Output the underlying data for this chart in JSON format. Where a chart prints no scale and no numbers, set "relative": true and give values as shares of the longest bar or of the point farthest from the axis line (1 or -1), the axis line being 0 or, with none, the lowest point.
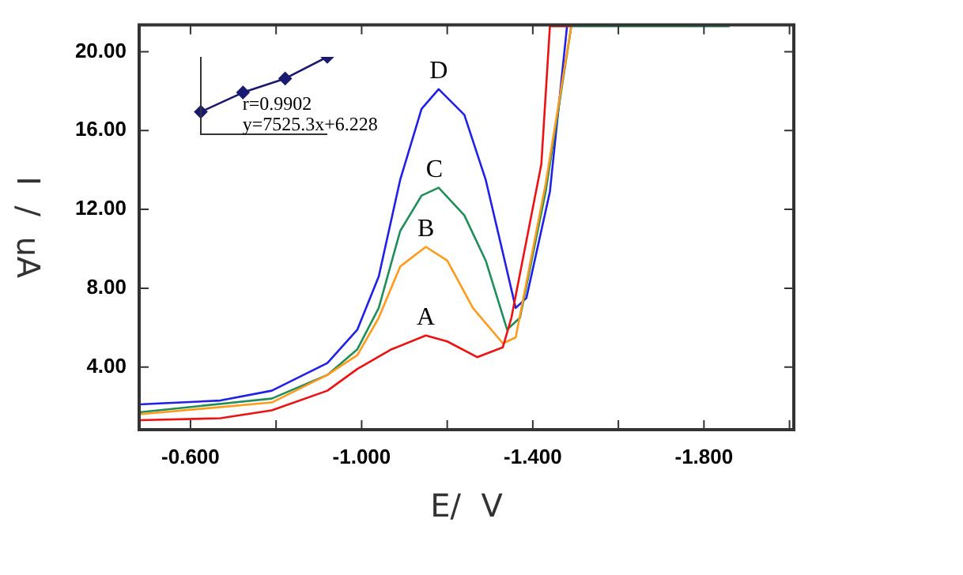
{
  "chart_data": [
    {
      "type": "line",
      "xlabel": "E/  V",
      "ylabel": "I  /  uA",
      "xlim": [
        -0.48,
        -2.01
      ],
      "ylim": [
        0.82,
        21.36
      ],
      "xticks": [
        {
          "value": -0.6,
          "label": "-0.600"
        },
        {
          "value": -0.8,
          "label": null
        },
        {
          "value": -1.0,
          "label": "-1.000"
        },
        {
          "value": -1.2,
          "label": null
        },
        {
          "value": -1.4,
          "label": "-1.400"
        },
        {
          "value": -1.6,
          "label": null
        },
        {
          "value": -1.8,
          "label": "-1.800"
        },
        {
          "value": -2.0,
          "label": null
        }
      ],
      "yticks": [
        {
          "value": 4,
          "label": "4.00"
        },
        {
          "value": 8,
          "label": "8.00"
        },
        {
          "value": 12,
          "label": "12.00"
        },
        {
          "value": 16,
          "label": "16.00"
        },
        {
          "value": 20,
          "label": "20.00"
        }
      ],
      "series": [
        {
          "color": "#ee1111",
          "x": [
            -0.48,
            -0.67,
            -0.79,
            -0.92,
            -0.99,
            -1.07,
            -1.15,
            -1.2,
            -1.27,
            -1.33,
            -1.35,
            -1.42,
            -1.44,
            -1.49
          ],
          "values": [
            1.3,
            1.4,
            1.8,
            2.8,
            3.9,
            4.9,
            5.6,
            5.3,
            4.5,
            5.0,
            6.5,
            14.3,
            21.3,
            21.3
          ]
        },
        {
          "color": "#ff9a1a",
          "x": [
            -0.48,
            -0.79,
            -0.92,
            -0.99,
            -1.04,
            -1.09,
            -1.15,
            -1.2,
            -1.26,
            -1.33,
            -1.36,
            -1.43,
            -1.49
          ],
          "values": [
            1.6,
            2.2,
            3.6,
            4.6,
            6.5,
            9.1,
            10.1,
            9.4,
            7.0,
            5.2,
            5.5,
            13.3,
            21.3
          ]
        },
        {
          "color": "#1f8f5a",
          "x": [
            -0.48,
            -0.79,
            -0.92,
            -0.99,
            -1.04,
            -1.09,
            -1.14,
            -1.18,
            -1.24,
            -1.29,
            -1.34,
            -1.37,
            -1.43,
            -1.49,
            -1.86
          ],
          "values": [
            1.7,
            2.4,
            3.6,
            4.9,
            7.0,
            10.9,
            12.7,
            13.1,
            11.7,
            9.4,
            5.9,
            6.5,
            12.9,
            21.3,
            21.3
          ]
        },
        {
          "color": "#2020e8",
          "x": [
            -0.48,
            -0.67,
            -0.79,
            -0.92,
            -0.99,
            -1.04,
            -1.09,
            -1.14,
            -1.18,
            -1.24,
            -1.29,
            -1.33,
            -1.36,
            -1.385,
            -1.44,
            -1.48
          ],
          "values": [
            2.1,
            2.3,
            2.8,
            4.2,
            5.9,
            8.6,
            13.5,
            17.1,
            18.1,
            16.8,
            13.5,
            9.8,
            7.0,
            7.5,
            12.9,
            21.3
          ]
        }
      ],
      "annotations": [
        {
          "text": "A",
          "x": -1.15,
          "y": 5.6
        },
        {
          "text": "B",
          "x": -1.15,
          "y": 10.1
        },
        {
          "text": "C",
          "x": -1.17,
          "y": 13.1
        },
        {
          "text": "D",
          "x": -1.18,
          "y": 18.1
        }
      ]
    },
    {
      "type": "line",
      "relative": true,
      "categories": [
        null,
        null,
        null,
        null
      ],
      "marker": "diamond",
      "series": [
        {
          "color": "#1a1a70",
          "values": [
            0.29,
            0.54,
            0.72,
            1
          ]
        }
      ],
      "annotations": [
        "r=0.9902",
        "y=7525.3x+6.228"
      ]
    }
  ]
}
